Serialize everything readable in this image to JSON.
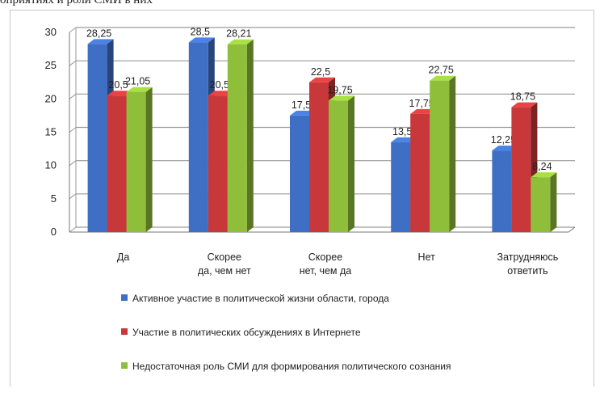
{
  "caption_fragment": "оприятиях и роли СМИ в них",
  "colors": {
    "series": [
      "#3f6fc4",
      "#c8383a",
      "#8fbf3a"
    ],
    "grid": "#9a9a9a"
  },
  "chart_data": {
    "type": "bar",
    "categories": [
      [
        "Да"
      ],
      [
        "Скорее",
        "да, чем нет"
      ],
      [
        "Скорее",
        "нет, чем да"
      ],
      [
        "Нет"
      ],
      [
        "Затрудняюсь",
        "ответить"
      ]
    ],
    "series": [
      {
        "name": "Активное участие в политической жизни области, города",
        "values": [
          28.25,
          28.5,
          17.5,
          13.5,
          12.25
        ],
        "labels": [
          "28,25",
          "28,5",
          "17,5",
          "13,5",
          "12,25"
        ]
      },
      {
        "name": "Участие в политических обсуждениях в Интернете",
        "values": [
          20.5,
          20.5,
          22.5,
          17.75,
          18.75
        ],
        "labels": [
          "20,5",
          "20,5",
          "22,5",
          "17,75",
          "18,75"
        ]
      },
      {
        "name": "Недостаточная роль СМИ для формирования политического сознания",
        "values": [
          21.05,
          28.21,
          19.75,
          22.75,
          8.24
        ],
        "labels": [
          "21,05",
          "28,21",
          "19,75",
          "22,75",
          "8,24"
        ]
      }
    ],
    "ylim": [
      0,
      30
    ],
    "yticks": [
      0,
      5,
      10,
      15,
      20,
      25,
      30
    ],
    "grid": true,
    "legend_position": "bottom",
    "xlabel": "",
    "ylabel": ""
  }
}
